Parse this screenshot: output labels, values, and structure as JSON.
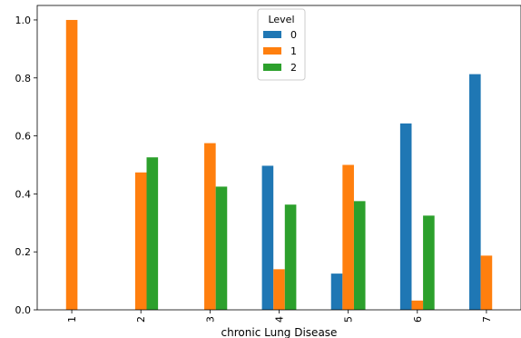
{
  "chart_data": {
    "type": "bar",
    "xlabel": "chronic Lung Disease",
    "ylabel": "",
    "ylim": [
      0,
      1.05
    ],
    "yticks": [
      "0.0",
      "0.2",
      "0.4",
      "0.6",
      "0.8",
      "1.0"
    ],
    "categories": [
      "1",
      "2",
      "3",
      "4",
      "5",
      "6",
      "7"
    ],
    "legend": {
      "title": "Level",
      "position": "top-center"
    },
    "grid": false,
    "series": [
      {
        "name": "0",
        "color": "#1f77b4",
        "values": [
          0,
          0,
          0,
          0.497,
          0.125,
          0.643,
          0.813
        ]
      },
      {
        "name": "1",
        "color": "#ff7f0e",
        "values": [
          1.0,
          0.474,
          0.575,
          0.14,
          0.5,
          0.032,
          0.187
        ]
      },
      {
        "name": "2",
        "color": "#2ca02c",
        "values": [
          0,
          0.526,
          0.425,
          0.363,
          0.375,
          0.325,
          0
        ]
      }
    ]
  }
}
